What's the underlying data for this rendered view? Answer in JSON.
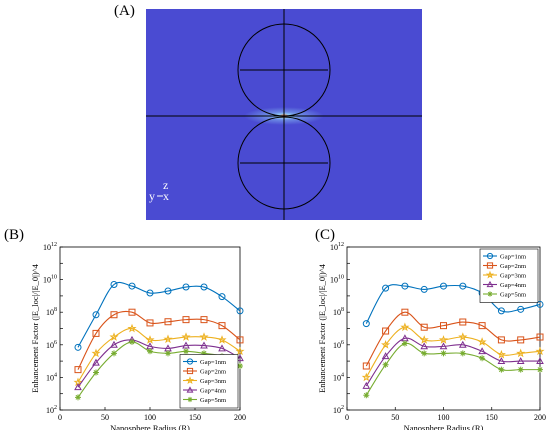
{
  "panels": {
    "a": {
      "label": "(A)",
      "field_colors": {
        "background": "#4a4bd2",
        "hotspot": "#ff5a00",
        "gap_glow": "#9fe8ff"
      },
      "axis_indicator": {
        "y": "y",
        "z": "z",
        "x": "x"
      }
    },
    "b": {
      "label": "(B)"
    },
    "c": {
      "label": "(C)"
    }
  },
  "chart_data": [
    {
      "type": "line",
      "panel": "(B)",
      "xlabel": "Nanosphere Radius (R)",
      "ylabel": "Enhancement Factor (|E_loc|/|E_0|)^4",
      "xlim": [
        0,
        200
      ],
      "ylim": [
        100,
        1000000000000.0
      ],
      "yscale": "log",
      "xticks": [
        "0",
        "50",
        "100",
        "150",
        "200"
      ],
      "yticks_exp": [
        "2",
        "4",
        "6",
        "8",
        "10",
        "12"
      ],
      "ytick_base": "10",
      "x": [
        20,
        40,
        60,
        80,
        100,
        120,
        140,
        160,
        180,
        200
      ],
      "legend_position": "bottom-right",
      "series": [
        {
          "name": "Gap=1nm",
          "color": "#0072bd",
          "marker": "circle",
          "values": [
            700000.0,
            70000000.0,
            5000000000.0,
            4000000000.0,
            1500000000.0,
            2000000000.0,
            3500000000.0,
            3500000000.0,
            900000000.0,
            120000000.0
          ]
        },
        {
          "name": "Gap=2nm",
          "color": "#d95319",
          "marker": "square",
          "values": [
            30000.0,
            5000000.0,
            70000000.0,
            100000000.0,
            22000000.0,
            26000000.0,
            35000000.0,
            35000000.0,
            15000000.0,
            2000000.0
          ]
        },
        {
          "name": "Gap=3nm",
          "color": "#edb120",
          "marker": "star",
          "values": [
            5000.0,
            300000.0,
            3000000.0,
            10000000.0,
            2000000.0,
            2200000.0,
            3000000.0,
            3000000.0,
            2000000.0,
            400000.0
          ]
        },
        {
          "name": "Gap=4nm",
          "color": "#7e2f8e",
          "marker": "triangle",
          "values": [
            2500.0,
            80000.0,
            1000000.0,
            2000000.0,
            800000.0,
            600000.0,
            900000.0,
            900000.0,
            600000.0,
            150000.0
          ]
        },
        {
          "name": "Gap=5nm",
          "color": "#77ac30",
          "marker": "asterisk",
          "values": [
            600,
            20000.0,
            300000.0,
            1500000.0,
            400000.0,
            300000.0,
            400000.0,
            300000.0,
            200000.0,
            50000.0
          ]
        }
      ]
    },
    {
      "type": "line",
      "panel": "(C)",
      "xlabel": "Nanosphere Radius (R)",
      "ylabel": "Enhancement Factor (|E_loc|/|E_0|)^4",
      "xlim": [
        0,
        200
      ],
      "ylim": [
        100,
        1000000000000.0
      ],
      "yscale": "log",
      "xticks": [
        "0",
        "50",
        "100",
        "150",
        "200"
      ],
      "yticks_exp": [
        "2",
        "4",
        "6",
        "8",
        "10",
        "12"
      ],
      "ytick_base": "10",
      "x": [
        20,
        40,
        60,
        80,
        100,
        120,
        140,
        160,
        180,
        200
      ],
      "legend_position": "top-right",
      "series": [
        {
          "name": "Gap=1nm",
          "color": "#0072bd",
          "marker": "circle",
          "values": [
            20000000.0,
            3000000000.0,
            4000000000.0,
            2500000000.0,
            4000000000.0,
            4000000000.0,
            1500000000.0,
            120000000.0,
            150000000.0,
            300000000.0
          ]
        },
        {
          "name": "Gap=2nm",
          "color": "#d95319",
          "marker": "square",
          "values": [
            50000.0,
            7000000.0,
            100000000.0,
            12000000.0,
            15000000.0,
            25000000.0,
            15000000.0,
            2000000.0,
            2000000.0,
            3000000.0
          ]
        },
        {
          "name": "Gap=3nm",
          "color": "#edb120",
          "marker": "star",
          "values": [
            10000.0,
            1000000.0,
            12000000.0,
            2000000.0,
            2000000.0,
            3000000.0,
            1500000.0,
            250000.0,
            300000.0,
            400000.0
          ]
        },
        {
          "name": "Gap=4nm",
          "color": "#7e2f8e",
          "marker": "triangle",
          "values": [
            3000.0,
            200000.0,
            2500000.0,
            800000.0,
            800000.0,
            1000000.0,
            400000.0,
            100000.0,
            100000.0,
            100000.0
          ]
        },
        {
          "name": "Gap=5nm",
          "color": "#77ac30",
          "marker": "asterisk",
          "values": [
            800,
            60000.0,
            1200000.0,
            300000.0,
            300000.0,
            300000.0,
            150000.0,
            30000.0,
            30000.0,
            30000.0
          ]
        }
      ]
    }
  ]
}
